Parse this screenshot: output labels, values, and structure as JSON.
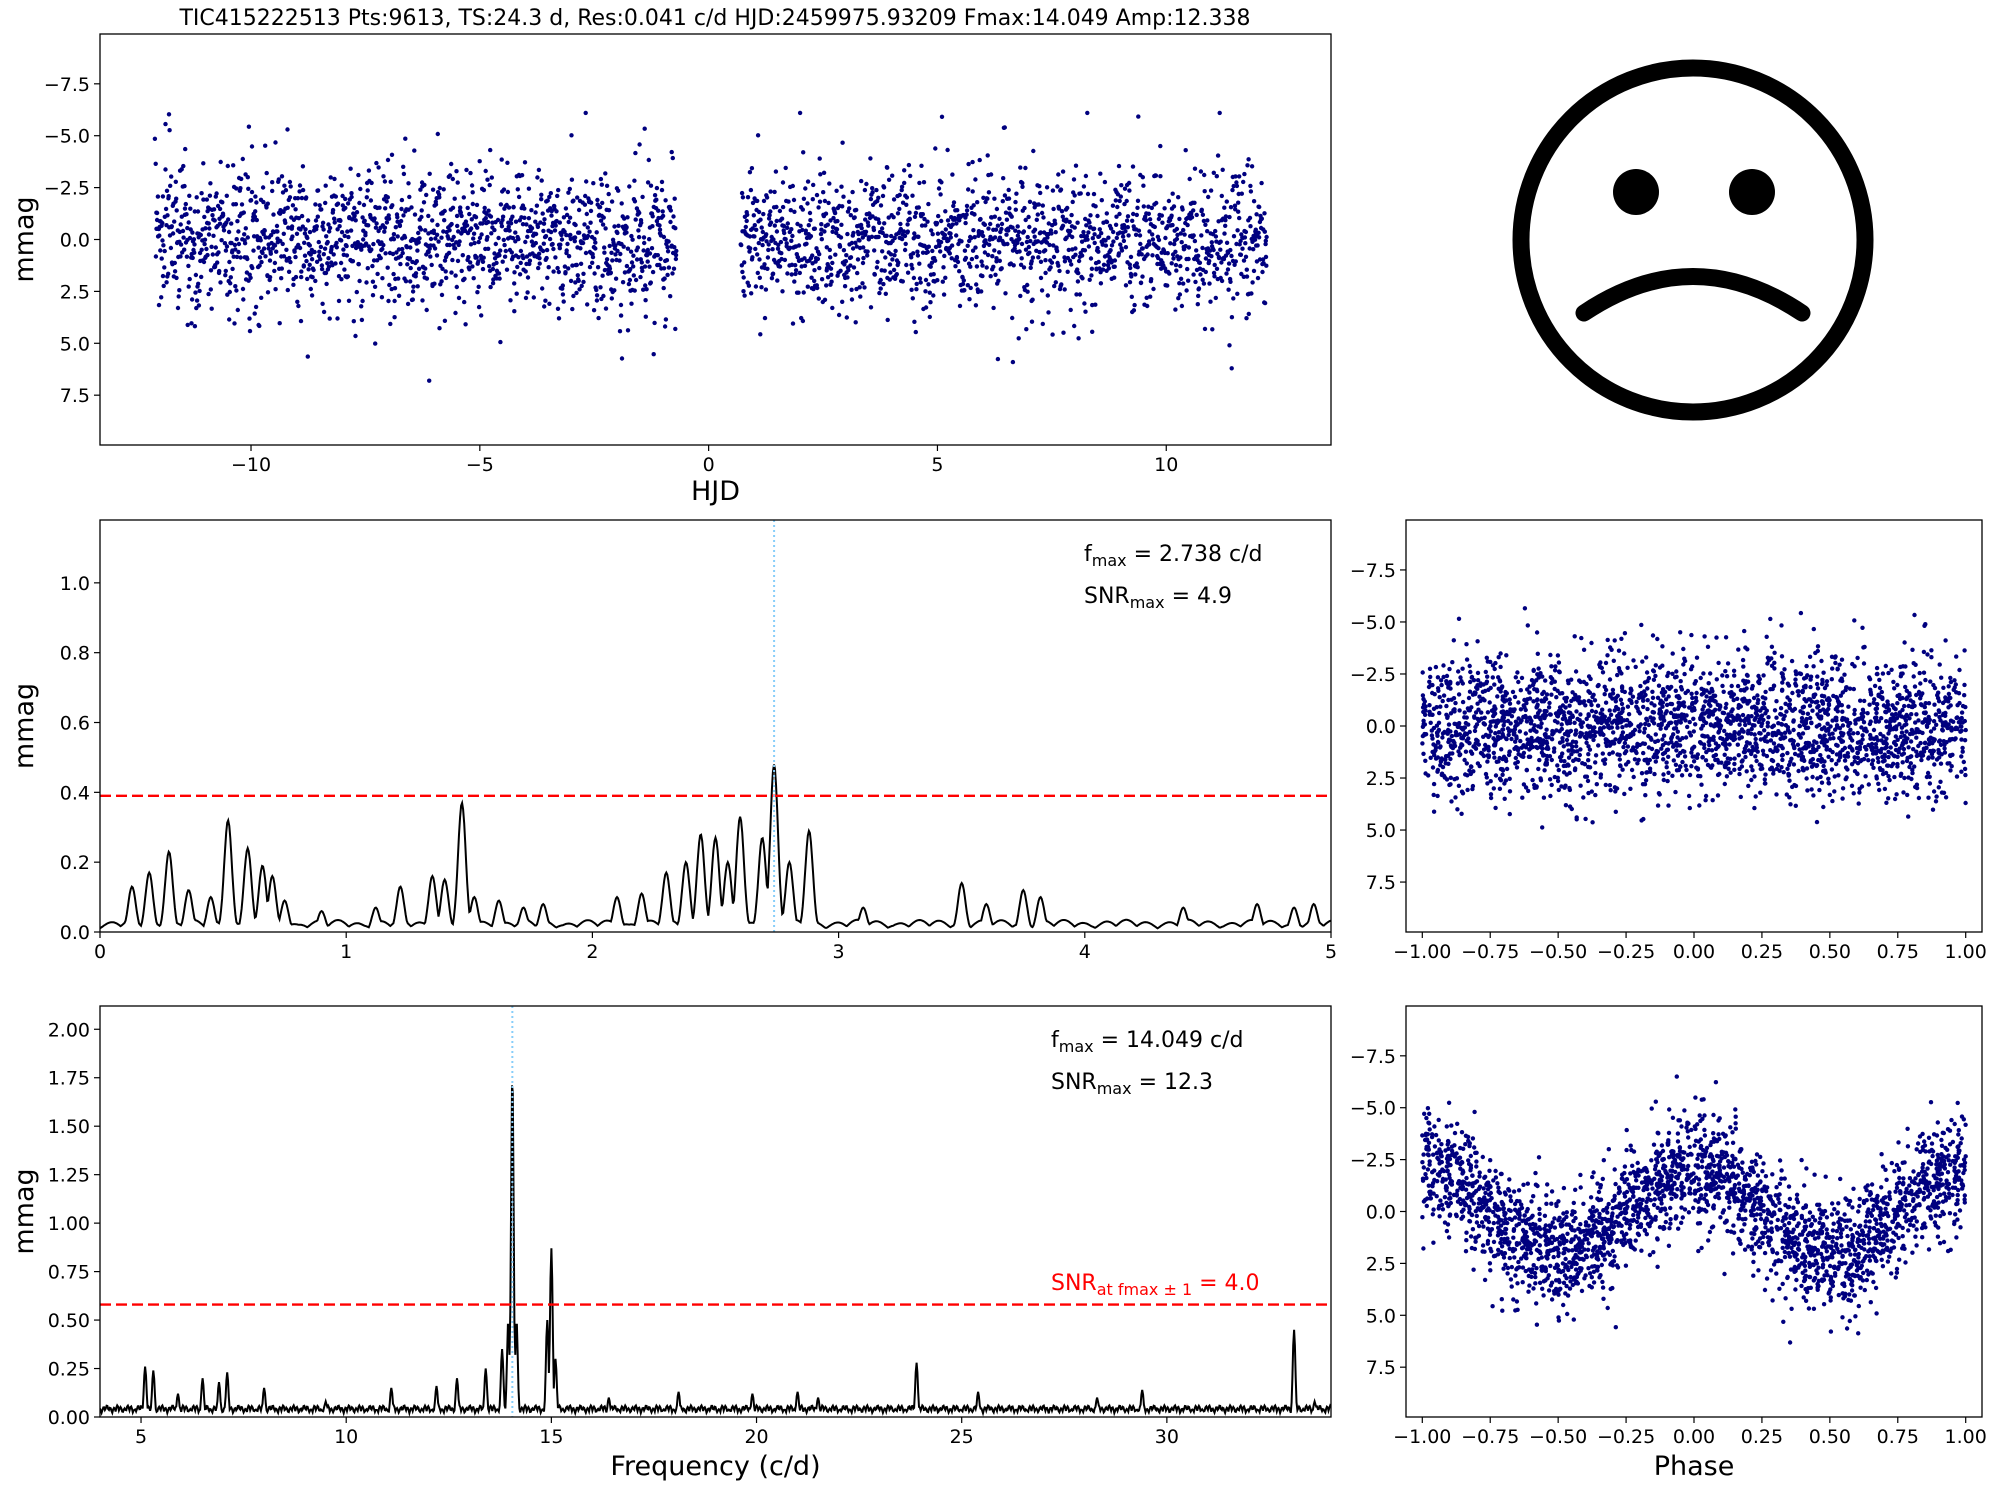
{
  "title": "TIC415222513  Pts:9613,  TS:24.3 d,  Res:0.041 c/d HJD:2459975.93209 Fmax:14.049 Amp:12.338",
  "colors": {
    "points": "#00007f",
    "line": "#000000",
    "threshold": "#ff0000",
    "marker": "#87cefa",
    "face": "#000000"
  },
  "icon": "sad-face-icon",
  "chart_data": [
    {
      "id": "lightcurve",
      "type": "scatter",
      "xlabel": "HJD",
      "ylabel": "mmag",
      "xlim": [
        -13.3,
        13.6
      ],
      "ylim": [
        9.9,
        -9.9
      ],
      "y_inverted": true,
      "xticks": [
        -10,
        -5,
        0,
        5,
        10
      ],
      "xtick_labels": [
        "−10",
        "−5",
        "0",
        "5",
        "10"
      ],
      "yticks": [
        -7.5,
        -5.0,
        -2.5,
        0.0,
        2.5,
        5.0,
        7.5
      ],
      "ytick_labels": [
        "−7.5",
        "−5.0",
        "−2.5",
        "0.0",
        "2.5",
        "5.0",
        "7.5"
      ],
      "points_count": 9613,
      "segments": [
        [
          -12.1,
          -0.7
        ],
        [
          0.7,
          12.2
        ]
      ],
      "y_spread": {
        "core": [
          -2.5,
          2.5
        ],
        "extremes": [
          -6.1,
          6.8
        ]
      }
    },
    {
      "id": "periodogram-low",
      "type": "line",
      "xlabel": "",
      "ylabel": "mmag",
      "xlim": [
        0,
        5
      ],
      "ylim": [
        0,
        1.18
      ],
      "xticks": [
        0,
        1,
        2,
        3,
        4,
        5
      ],
      "xtick_labels": [
        "0",
        "1",
        "2",
        "3",
        "4",
        "5"
      ],
      "yticks": [
        0.0,
        0.2,
        0.4,
        0.6,
        0.8,
        1.0
      ],
      "ytick_labels": [
        "0.0",
        "0.2",
        "0.4",
        "0.6",
        "0.8",
        "1.0"
      ],
      "threshold": 0.39,
      "marker_x": 2.738,
      "peaks": [
        [
          0.13,
          0.13
        ],
        [
          0.2,
          0.17
        ],
        [
          0.28,
          0.23
        ],
        [
          0.36,
          0.12
        ],
        [
          0.45,
          0.1
        ],
        [
          0.52,
          0.32
        ],
        [
          0.6,
          0.24
        ],
        [
          0.66,
          0.19
        ],
        [
          0.7,
          0.16
        ],
        [
          0.75,
          0.09
        ],
        [
          0.9,
          0.06
        ],
        [
          1.12,
          0.07
        ],
        [
          1.22,
          0.13
        ],
        [
          1.35,
          0.16
        ],
        [
          1.4,
          0.15
        ],
        [
          1.47,
          0.37
        ],
        [
          1.52,
          0.1
        ],
        [
          1.62,
          0.09
        ],
        [
          1.72,
          0.07
        ],
        [
          1.8,
          0.08
        ],
        [
          2.1,
          0.1
        ],
        [
          2.2,
          0.11
        ],
        [
          2.3,
          0.17
        ],
        [
          2.38,
          0.2
        ],
        [
          2.44,
          0.28
        ],
        [
          2.5,
          0.27
        ],
        [
          2.55,
          0.2
        ],
        [
          2.6,
          0.33
        ],
        [
          2.69,
          0.27
        ],
        [
          2.738,
          0.48
        ],
        [
          2.8,
          0.2
        ],
        [
          2.88,
          0.29
        ],
        [
          3.1,
          0.07
        ],
        [
          3.5,
          0.14
        ],
        [
          3.6,
          0.08
        ],
        [
          3.75,
          0.12
        ],
        [
          3.82,
          0.1
        ],
        [
          4.4,
          0.07
        ],
        [
          4.7,
          0.08
        ],
        [
          4.85,
          0.07
        ],
        [
          4.93,
          0.08
        ]
      ],
      "annotations": [
        "f<sub>max</sub> = 2.738 c/d",
        "SNR<sub>max</sub> = 4.9"
      ]
    },
    {
      "id": "periodogram-high",
      "type": "line",
      "xlabel": "Frequency (c/d)",
      "ylabel": "mmag",
      "xlim": [
        4,
        34
      ],
      "ylim": [
        0,
        2.12
      ],
      "xticks": [
        5,
        10,
        15,
        20,
        25,
        30
      ],
      "xtick_labels": [
        "5",
        "10",
        "15",
        "20",
        "25",
        "30"
      ],
      "yticks": [
        0.0,
        0.25,
        0.5,
        0.75,
        1.0,
        1.25,
        1.5,
        1.75,
        2.0
      ],
      "ytick_labels": [
        "0.00",
        "0.25",
        "0.50",
        "0.75",
        "1.00",
        "1.25",
        "1.50",
        "1.75",
        "2.00"
      ],
      "threshold": 0.58,
      "marker_x": 14.049,
      "peaks": [
        [
          5.1,
          0.26
        ],
        [
          5.3,
          0.24
        ],
        [
          5.9,
          0.12
        ],
        [
          6.5,
          0.2
        ],
        [
          6.9,
          0.18
        ],
        [
          7.1,
          0.23
        ],
        [
          8.0,
          0.15
        ],
        [
          9.5,
          0.08
        ],
        [
          11.1,
          0.15
        ],
        [
          12.2,
          0.16
        ],
        [
          12.7,
          0.2
        ],
        [
          13.4,
          0.25
        ],
        [
          13.8,
          0.35
        ],
        [
          13.95,
          0.5
        ],
        [
          14.049,
          1.78
        ],
        [
          14.15,
          0.5
        ],
        [
          14.9,
          0.5
        ],
        [
          15.0,
          0.87
        ],
        [
          15.1,
          0.3
        ],
        [
          16.4,
          0.1
        ],
        [
          18.1,
          0.13
        ],
        [
          19.9,
          0.12
        ],
        [
          21.0,
          0.13
        ],
        [
          21.5,
          0.1
        ],
        [
          23.9,
          0.28
        ],
        [
          25.4,
          0.13
        ],
        [
          28.3,
          0.1
        ],
        [
          29.4,
          0.14
        ],
        [
          33.1,
          0.45
        ],
        [
          33.6,
          0.08
        ]
      ],
      "annotations": [
        "f<sub>max</sub> = 14.049 c/d",
        "SNR<sub>max</sub> = 12.3",
        "SNR<sub>at fmax ± 1</sub> = 4.0"
      ]
    },
    {
      "id": "phase-low",
      "type": "scatter",
      "xlabel": "",
      "ylabel": "",
      "xlim": [
        -1.06,
        1.06
      ],
      "ylim": [
        9.9,
        -9.9
      ],
      "y_inverted": true,
      "xticks": [
        -1.0,
        -0.75,
        -0.5,
        -0.25,
        0.0,
        0.25,
        0.5,
        0.75,
        1.0
      ],
      "xtick_labels": [
        "−1.00",
        "−0.75",
        "−0.50",
        "−0.25",
        "0.00",
        "0.25",
        "0.50",
        "0.75",
        "1.00"
      ],
      "yticks": [
        -7.5,
        -5.0,
        -2.5,
        0.0,
        2.5,
        5.0,
        7.5
      ],
      "ytick_labels": [
        "−7.5",
        "−5.0",
        "−2.5",
        "0.0",
        "2.5",
        "5.0",
        "7.5"
      ],
      "amplitude": 0.0
    },
    {
      "id": "phase-high",
      "type": "scatter",
      "xlabel": "Phase",
      "ylabel": "",
      "xlim": [
        -1.06,
        1.06
      ],
      "ylim": [
        9.9,
        -9.9
      ],
      "y_inverted": true,
      "xticks": [
        -1.0,
        -0.75,
        -0.5,
        -0.25,
        0.0,
        0.25,
        0.5,
        0.75,
        1.0
      ],
      "xtick_labels": [
        "−1.00",
        "−0.75",
        "−0.50",
        "−0.25",
        "0.00",
        "0.25",
        "0.50",
        "0.75",
        "1.00"
      ],
      "yticks": [
        -7.5,
        -5.0,
        -2.5,
        0.0,
        2.5,
        5.0,
        7.5
      ],
      "ytick_labels": [
        "−7.5",
        "−5.0",
        "−2.5",
        "0.0",
        "2.5",
        "5.0",
        "7.5"
      ],
      "amplitude": 2.0
    }
  ]
}
